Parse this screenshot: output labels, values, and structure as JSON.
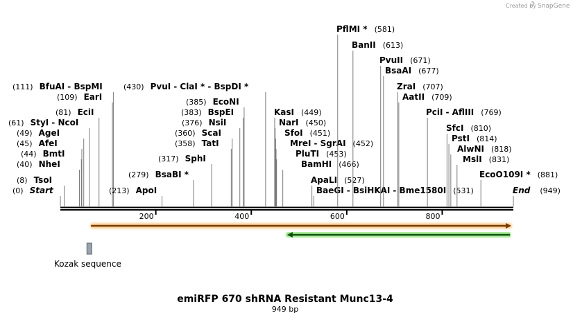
{
  "credit": {
    "prefix": "Created by",
    "brand": "SnapGene"
  },
  "title": "emiRFP 670 shRNA Resistant Munc13-4",
  "subtitle": "949 bp",
  "sequence_length": 949,
  "ticks": [
    {
      "pos": 200,
      "label": "200"
    },
    {
      "pos": 400,
      "label": "400"
    },
    {
      "pos": 600,
      "label": "600"
    },
    {
      "pos": 800,
      "label": "800"
    }
  ],
  "features": {
    "orange_arrow": {
      "start": 64,
      "end": 949,
      "direction": "forward",
      "color": "#f0a23a"
    },
    "green_arrow": {
      "start": 475,
      "end": 949,
      "direction": "reverse",
      "color": "#3fb83f"
    },
    "kozak": {
      "pos": 60,
      "label": "Kozak sequence",
      "color": "#9aa3ad"
    }
  },
  "sites": [
    {
      "pos": 0,
      "pos_label": "(0)",
      "parts": [
        "Start"
      ],
      "italic": true
    },
    {
      "pos": 8,
      "pos_label": "(8)",
      "parts": [
        "TsoI"
      ]
    },
    {
      "pos": 40,
      "pos_label": "(40)",
      "parts": [
        "NheI"
      ]
    },
    {
      "pos": 44,
      "pos_label": "(44)",
      "parts": [
        "BmtI"
      ]
    },
    {
      "pos": 45,
      "pos_label": "(45)",
      "parts": [
        "AfeI"
      ]
    },
    {
      "pos": 49,
      "pos_label": "(49)",
      "parts": [
        "AgeI"
      ]
    },
    {
      "pos": 61,
      "pos_label": "(61)",
      "parts": [
        "StyI",
        "NcoI"
      ]
    },
    {
      "pos": 81,
      "pos_label": "(81)",
      "parts": [
        "EciI"
      ]
    },
    {
      "pos": 109,
      "pos_label": "(109)",
      "parts": [
        "EarI"
      ]
    },
    {
      "pos": 111,
      "pos_label": "(111)",
      "parts": [
        "BfuAI",
        "BspMI"
      ]
    },
    {
      "pos": 213,
      "pos_label": "(213)",
      "parts": [
        "ApoI"
      ]
    },
    {
      "pos": 279,
      "pos_label": "(279)",
      "parts": [
        "BsaBI *"
      ]
    },
    {
      "pos": 317,
      "pos_label": "(317)",
      "parts": [
        "SphI"
      ]
    },
    {
      "pos": 358,
      "pos_label": "(358)",
      "parts": [
        "TatI"
      ]
    },
    {
      "pos": 360,
      "pos_label": "(360)",
      "parts": [
        "ScaI"
      ]
    },
    {
      "pos": 376,
      "pos_label": "(376)",
      "parts": [
        "NsiI"
      ]
    },
    {
      "pos": 383,
      "pos_label": "(383)",
      "parts": [
        "BspEI"
      ]
    },
    {
      "pos": 385,
      "pos_label": "(385)",
      "parts": [
        "EcoNI"
      ]
    },
    {
      "pos": 430,
      "pos_label": "(430)",
      "parts": [
        "PvuI",
        "ClaI *",
        "BspDI *"
      ]
    },
    {
      "pos": 449,
      "pos_label": "(449)",
      "parts": [
        "KasI"
      ]
    },
    {
      "pos": 450,
      "pos_label": "(450)",
      "parts": [
        "NarI"
      ]
    },
    {
      "pos": 451,
      "pos_label": "(451)",
      "parts": [
        "SfoI"
      ]
    },
    {
      "pos": 452,
      "pos_label": "(452)",
      "parts": [
        "MreI",
        "SgrAI"
      ]
    },
    {
      "pos": 453,
      "pos_label": "(453)",
      "parts": [
        "PluTI"
      ]
    },
    {
      "pos": 466,
      "pos_label": "(466)",
      "parts": [
        "BamHI"
      ]
    },
    {
      "pos": 527,
      "pos_label": "(527)",
      "parts": [
        "ApaLI"
      ]
    },
    {
      "pos": 531,
      "pos_label": "(531)",
      "parts": [
        "BaeGI",
        "BsiHKAI",
        "Bme1580I"
      ]
    },
    {
      "pos": 581,
      "pos_label": "(581)",
      "parts": [
        "PflMI *"
      ]
    },
    {
      "pos": 613,
      "pos_label": "(613)",
      "parts": [
        "BanII"
      ]
    },
    {
      "pos": 671,
      "pos_label": "(671)",
      "parts": [
        "PvuII"
      ]
    },
    {
      "pos": 677,
      "pos_label": "(677)",
      "parts": [
        "BsaAI"
      ]
    },
    {
      "pos": 707,
      "pos_label": "(707)",
      "parts": [
        "ZraI"
      ]
    },
    {
      "pos": 709,
      "pos_label": "(709)",
      "parts": [
        "AatII"
      ]
    },
    {
      "pos": 769,
      "pos_label": "(769)",
      "parts": [
        "PciI",
        "AflIII"
      ]
    },
    {
      "pos": 810,
      "pos_label": "(810)",
      "parts": [
        "SfcI"
      ]
    },
    {
      "pos": 814,
      "pos_label": "(814)",
      "parts": [
        "PstI"
      ]
    },
    {
      "pos": 818,
      "pos_label": "(818)",
      "parts": [
        "AlwNI"
      ]
    },
    {
      "pos": 831,
      "pos_label": "(831)",
      "parts": [
        "MslI"
      ]
    },
    {
      "pos": 881,
      "pos_label": "(881)",
      "parts": [
        "EcoO109I *"
      ]
    },
    {
      "pos": 949,
      "pos_label": "(949)",
      "parts": [
        "End"
      ],
      "italic": true,
      "label_left": true
    }
  ]
}
